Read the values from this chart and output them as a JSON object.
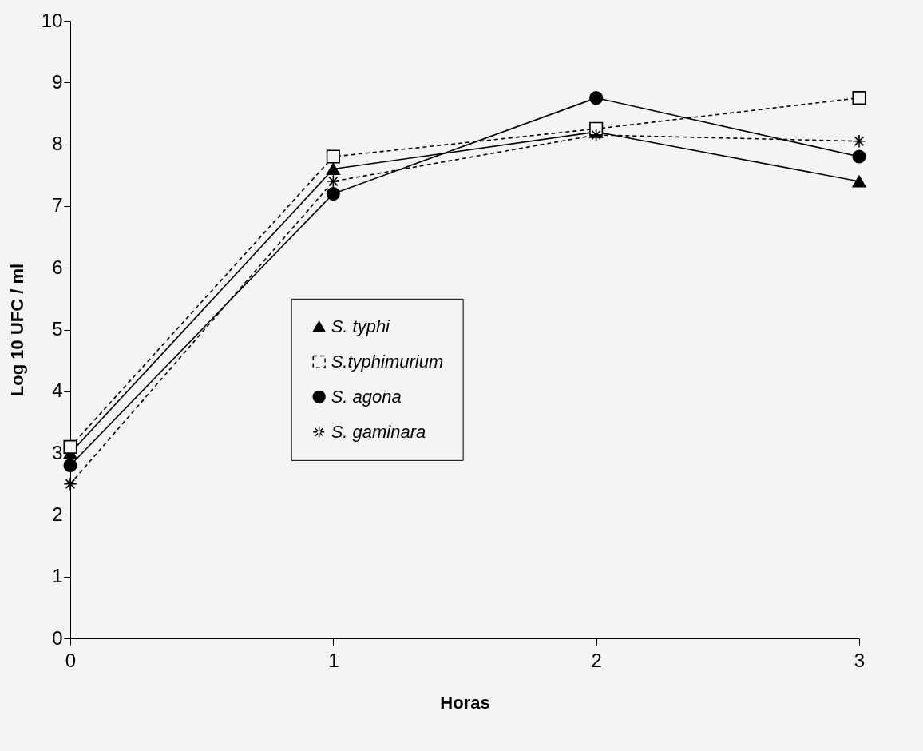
{
  "chart_data": {
    "type": "line",
    "xlabel": "Horas",
    "ylabel": "Log 10 UFC / ml",
    "x": [
      0,
      1,
      2,
      3
    ],
    "series": [
      {
        "name": "S. typhi",
        "color": "#000000",
        "marker": "triangle",
        "line_style": "solid",
        "values": [
          3.0,
          7.6,
          8.2,
          7.4
        ]
      },
      {
        "name": "S.typhimurium",
        "color": "#000000",
        "marker": "square",
        "line_style": "dashed",
        "values": [
          3.1,
          7.8,
          8.25,
          8.75
        ]
      },
      {
        "name": "S. agona",
        "color": "#000000",
        "marker": "circle",
        "line_style": "solid",
        "values": [
          2.8,
          7.2,
          8.75,
          7.8
        ]
      },
      {
        "name": "S. gaminara",
        "color": "#000000",
        "marker": "cross",
        "line_style": "dashed",
        "values": [
          2.5,
          7.4,
          8.15,
          8.05
        ]
      }
    ],
    "xlim": [
      0,
      3
    ],
    "xticks": [
      0,
      1,
      2,
      3
    ],
    "ylim": [
      0,
      10
    ],
    "yticks": [
      0,
      1,
      2,
      3,
      4,
      5,
      6,
      7,
      8,
      9,
      10
    ],
    "grid": false,
    "legend": "center"
  }
}
